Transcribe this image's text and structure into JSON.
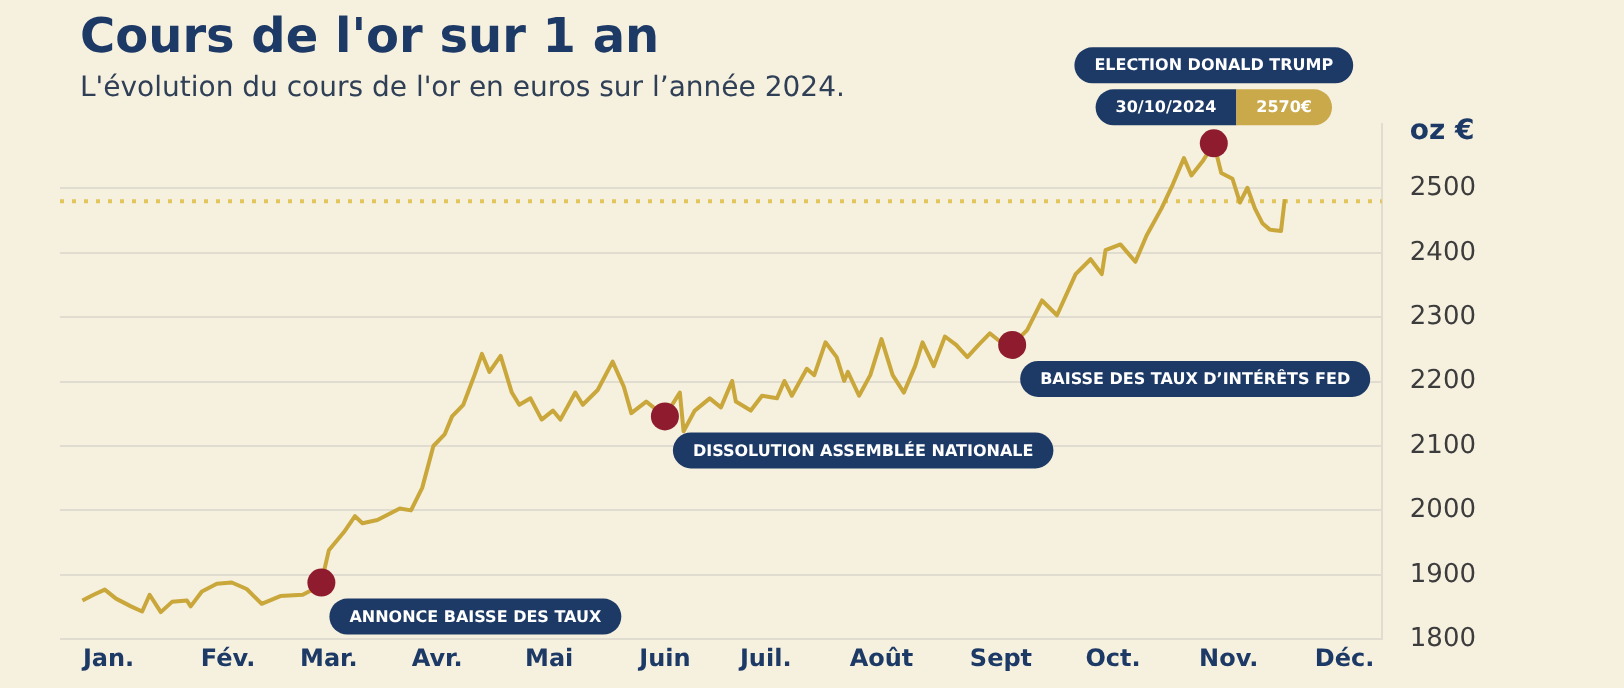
{
  "chart_data": {
    "type": "line",
    "title": "Cours de l'or sur 1 an",
    "subtitle": "L'évolution du cours de l'or en euros sur l’année 2024.",
    "ylabel": "oz €",
    "x": [
      "2024-01-01",
      "2024-01-04",
      "2024-01-07",
      "2024-01-10",
      "2024-01-14",
      "2024-01-17",
      "2024-01-19",
      "2024-01-22",
      "2024-01-25",
      "2024-01-29",
      "2024-01-30",
      "2024-02-02",
      "2024-02-06",
      "2024-02-10",
      "2024-02-14",
      "2024-02-18",
      "2024-02-23",
      "2024-02-29",
      "2024-03-03",
      "2024-03-05",
      "2024-03-07",
      "2024-03-11",
      "2024-03-14",
      "2024-03-16",
      "2024-03-20",
      "2024-03-26",
      "2024-03-29",
      "2024-04-01",
      "2024-04-04",
      "2024-04-07",
      "2024-04-09",
      "2024-04-12",
      "2024-04-15",
      "2024-04-17",
      "2024-04-19",
      "2024-04-22",
      "2024-04-25",
      "2024-04-27",
      "2024-04-30",
      "2024-05-03",
      "2024-05-06",
      "2024-05-08",
      "2024-05-12",
      "2024-05-14",
      "2024-05-18",
      "2024-05-22",
      "2024-05-25",
      "2024-05-27",
      "2024-05-31",
      "2024-06-03",
      "2024-06-05",
      "2024-06-09",
      "2024-06-10",
      "2024-06-13",
      "2024-06-17",
      "2024-06-20",
      "2024-06-23",
      "2024-06-24",
      "2024-06-28",
      "2024-07-01",
      "2024-07-05",
      "2024-07-07",
      "2024-07-09",
      "2024-07-13",
      "2024-07-15",
      "2024-07-18",
      "2024-07-21",
      "2024-07-23",
      "2024-07-24",
      "2024-07-27",
      "2024-07-30",
      "2024-08-02",
      "2024-08-05",
      "2024-08-08",
      "2024-08-11",
      "2024-08-13",
      "2024-08-16",
      "2024-08-19",
      "2024-08-22",
      "2024-08-25",
      "2024-08-28",
      "2024-08-31",
      "2024-09-03",
      "2024-09-06",
      "2024-09-10",
      "2024-09-14",
      "2024-09-18",
      "2024-09-23",
      "2024-09-27",
      "2024-09-30",
      "2024-10-01",
      "2024-10-05",
      "2024-10-09",
      "2024-10-12",
      "2024-10-16",
      "2024-10-19",
      "2024-10-22",
      "2024-10-24",
      "2024-10-27",
      "2024-10-30",
      "2024-11-01",
      "2024-11-04",
      "2024-11-06",
      "2024-11-08",
      "2024-11-10",
      "2024-11-12",
      "2024-11-14",
      "2024-11-17",
      "2024-11-18"
    ],
    "series": [
      {
        "color": "#c9a73b",
        "values": [
          1860,
          1869,
          1877,
          1863,
          1851,
          1843,
          1869,
          1842,
          1858,
          1860,
          1851,
          1874,
          1886,
          1888,
          1878,
          1855,
          1867,
          1869,
          1878,
          1888,
          1938,
          1966,
          1991,
          1980,
          1985,
          2003,
          2000,
          2035,
          2100,
          2118,
          2146,
          2164,
          2210,
          2243,
          2215,
          2240,
          2183,
          2164,
          2174,
          2141,
          2155,
          2141,
          2183,
          2164,
          2187,
          2231,
          2192,
          2151,
          2169,
          2155,
          2146,
          2183,
          2123,
          2155,
          2174,
          2160,
          2201,
          2169,
          2155,
          2178,
          2174,
          2201,
          2178,
          2220,
          2210,
          2261,
          2238,
          2201,
          2215,
          2178,
          2210,
          2266,
          2210,
          2183,
          2224,
          2261,
          2224,
          2270,
          2257,
          2238,
          2257,
          2275,
          2261,
          2257,
          2280,
          2326,
          2303,
          2367,
          2390,
          2367,
          2404,
          2413,
          2386,
          2427,
          2469,
          2506,
          2547,
          2520,
          2542,
          2570,
          2524,
          2515,
          2478,
          2501,
          2469,
          2446,
          2436,
          2434,
          2483
        ]
      }
    ],
    "xlim": [
      "2023-12-26",
      "2024-12-14"
    ],
    "xticks": [
      {
        "value": "2024-01-08",
        "label": "Jan."
      },
      {
        "value": "2024-02-09",
        "label": "Fév."
      },
      {
        "value": "2024-03-07",
        "label": "Mar."
      },
      {
        "value": "2024-04-05",
        "label": "Avr."
      },
      {
        "value": "2024-05-05",
        "label": "Mai"
      },
      {
        "value": "2024-06-05",
        "label": "Juin"
      },
      {
        "value": "2024-07-02",
        "label": "Juil."
      },
      {
        "value": "2024-08-02",
        "label": "Août"
      },
      {
        "value": "2024-09-03",
        "label": "Sept"
      },
      {
        "value": "2024-10-03",
        "label": "Oct."
      },
      {
        "value": "2024-11-03",
        "label": "Nov."
      },
      {
        "value": "2024-12-04",
        "label": "Déc."
      }
    ],
    "ylim": [
      1800,
      2600
    ],
    "yticks": [
      1800,
      1900,
      2000,
      2100,
      2200,
      2300,
      2400,
      2500
    ],
    "grid": "y",
    "ref_lines": [
      {
        "axis": "y",
        "value": 2480,
        "color": "#e2c65c",
        "line_style": "dotted"
      }
    ],
    "annotations": [
      {
        "text": "ANNONCE BAISSE DES TAUX",
        "x": "2024-03-05",
        "y": 1888
      },
      {
        "text": "DISSOLUTION ASSEMBLÉE NATIONALE",
        "x": "2024-06-05",
        "y": 2146
      },
      {
        "text": "BAISSE DES TAUX D’INTÉRÊTS FED",
        "x": "2024-09-06",
        "y": 2257
      },
      {
        "text": "30/10/2024",
        "x": "2024-10-30",
        "y": 2570
      },
      "2570€",
      "ELECTION DONALD TRUMP"
    ],
    "marker": "none",
    "line_style": "solid",
    "legend": false
  }
}
